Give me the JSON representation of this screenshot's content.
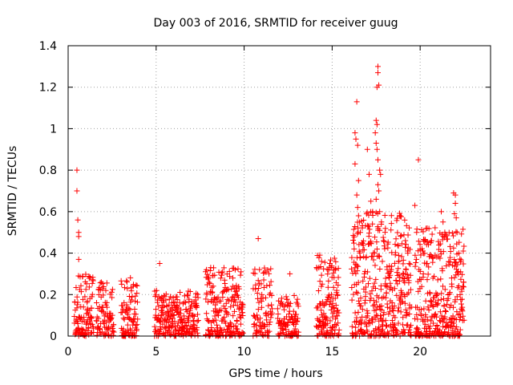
{
  "chart_data": {
    "type": "scatter",
    "title": "Day 003 of 2016, SRMTID for receiver guug",
    "xlabel": "GPS time / hours",
    "ylabel": "SRMTID / TECUs",
    "xlim": [
      0,
      24
    ],
    "ylim": [
      0,
      1.4
    ],
    "xticks": [
      0,
      5,
      10,
      15,
      20
    ],
    "xtick_labels": [
      "0",
      "5",
      "10",
      "15",
      "20"
    ],
    "yticks": [
      0,
      0.2,
      0.4,
      0.6,
      0.8,
      1.0,
      1.2,
      1.4
    ],
    "ytick_labels": [
      "0",
      "0.2",
      "0.4",
      "0.6",
      "0.8",
      "1",
      "1.2",
      "1.4"
    ],
    "grid": true,
    "marker": "plus",
    "color": "#ff0000",
    "clusters": [
      {
        "x_start": 0.35,
        "x_end": 1.45,
        "n": 110,
        "peak": 0.3
      },
      {
        "x_start": 1.6,
        "x_end": 2.6,
        "n": 90,
        "peak": 0.26
      },
      {
        "x_start": 3.0,
        "x_end": 3.95,
        "n": 90,
        "peak": 0.29
      },
      {
        "x_start": 4.9,
        "x_end": 7.4,
        "n": 240,
        "peak": 0.22
      },
      {
        "x_start": 7.8,
        "x_end": 9.95,
        "n": 220,
        "peak": 0.33
      },
      {
        "x_start": 10.5,
        "x_end": 11.6,
        "n": 90,
        "peak": 0.36
      },
      {
        "x_start": 11.9,
        "x_end": 13.1,
        "n": 110,
        "peak": 0.2
      },
      {
        "x_start": 14.1,
        "x_end": 15.4,
        "n": 140,
        "peak": 0.39
      },
      {
        "x_start": 16.1,
        "x_end": 19.5,
        "n": 420,
        "peak": 0.6
      },
      {
        "x_start": 19.7,
        "x_end": 22.5,
        "n": 340,
        "peak": 0.53
      }
    ],
    "points": [
      [
        0.5,
        0.8
      ],
      [
        0.5,
        0.7
      ],
      [
        0.55,
        0.56
      ],
      [
        0.6,
        0.5
      ],
      [
        0.6,
        0.48
      ],
      [
        0.6,
        0.37
      ],
      [
        5.2,
        0.35
      ],
      [
        8.1,
        0.33
      ],
      [
        10.8,
        0.47
      ],
      [
        12.6,
        0.3
      ],
      [
        14.3,
        0.39
      ],
      [
        14.4,
        0.36
      ],
      [
        15.1,
        0.32
      ],
      [
        16.4,
        1.13
      ],
      [
        16.3,
        0.98
      ],
      [
        16.35,
        0.95
      ],
      [
        16.45,
        0.92
      ],
      [
        16.3,
        0.83
      ],
      [
        16.5,
        0.75
      ],
      [
        16.4,
        0.68
      ],
      [
        16.45,
        0.62
      ],
      [
        16.5,
        0.58
      ],
      [
        16.6,
        0.5
      ],
      [
        16.7,
        0.45
      ],
      [
        17.0,
        0.9
      ],
      [
        17.1,
        0.78
      ],
      [
        17.2,
        0.65
      ],
      [
        17.3,
        0.6
      ],
      [
        17.6,
        1.3
      ],
      [
        17.6,
        1.27
      ],
      [
        17.65,
        1.21
      ],
      [
        17.55,
        1.2
      ],
      [
        17.5,
        1.04
      ],
      [
        17.55,
        1.02
      ],
      [
        17.45,
        0.98
      ],
      [
        17.5,
        0.93
      ],
      [
        17.55,
        0.9
      ],
      [
        17.6,
        0.85
      ],
      [
        17.7,
        0.8
      ],
      [
        17.75,
        0.78
      ],
      [
        17.6,
        0.73
      ],
      [
        17.65,
        0.7
      ],
      [
        17.5,
        0.66
      ],
      [
        17.7,
        0.6
      ],
      [
        17.8,
        0.55
      ],
      [
        19.7,
        0.63
      ],
      [
        19.8,
        0.5
      ],
      [
        19.9,
        0.85
      ],
      [
        20.4,
        0.52
      ],
      [
        20.6,
        0.45
      ],
      [
        21.2,
        0.6
      ],
      [
        21.3,
        0.55
      ],
      [
        21.4,
        0.5
      ],
      [
        21.9,
        0.69
      ],
      [
        22.0,
        0.68
      ],
      [
        22.0,
        0.64
      ],
      [
        21.95,
        0.59
      ],
      [
        22.05,
        0.57
      ],
      [
        22.1,
        0.5
      ],
      [
        22.2,
        0.4
      ],
      [
        22.3,
        0.31
      ]
    ]
  }
}
